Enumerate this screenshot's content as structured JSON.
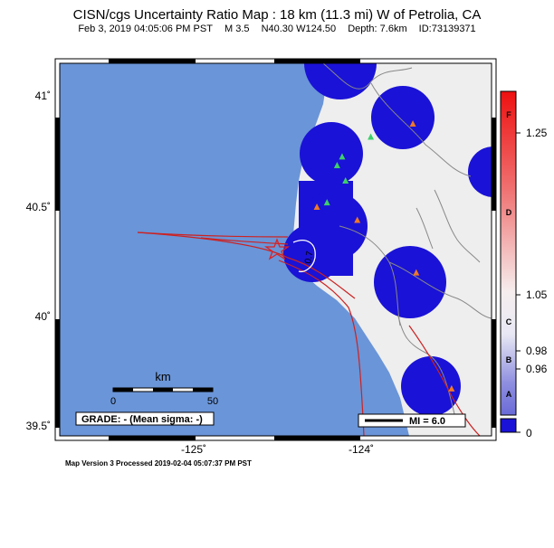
{
  "header": {
    "title": "CISN/cgs Uncertainty Ratio Map : 18 km (11.3 mi) W of Petrolia, CA",
    "date": "Feb  3, 2019 04:05:06 PM PST",
    "magnitude": "M 3.5",
    "location": "N40.30 W124.50",
    "depth": "Depth: 7.6km",
    "event_id": "ID:73139371"
  },
  "axes": {
    "lat_ticks": [
      "41˚",
      "40.5˚",
      "40˚",
      "39.5˚"
    ],
    "lon_ticks": [
      "-125˚",
      "-124˚"
    ]
  },
  "scale_bar": {
    "unit": "km",
    "min": "0",
    "max": "50"
  },
  "grade_box": {
    "text": "GRADE: - (Mean sigma: -)"
  },
  "legend_box": {
    "text": "MI = 6.0"
  },
  "contour_label": "0.7",
  "colorbar": {
    "values": [
      "1.25",
      "1.05",
      "0.98",
      "0.96",
      "0"
    ],
    "letters": [
      "F",
      "D",
      "C",
      "B",
      "A"
    ]
  },
  "footer": {
    "processed": "Map Version 3 Processed 2019-02-04 05:07:37 PM PST"
  },
  "colors": {
    "ocean": "#6a95d8",
    "land": "#eeeeee",
    "station_blob": "#1a12d6",
    "fault": "#cc2222",
    "river": "#888888",
    "epicenter": "#dd2222"
  },
  "stations": [
    {
      "type": "orange",
      "lat": 40.88,
      "lon": -123.72
    },
    {
      "type": "orange",
      "lat": 40.5,
      "lon": -124.29
    },
    {
      "type": "orange",
      "lat": 40.44,
      "lon": -124.05
    },
    {
      "type": "orange",
      "lat": 40.2,
      "lon": -123.7
    },
    {
      "type": "orange",
      "lat": 39.67,
      "lon": -123.49
    },
    {
      "type": "green",
      "lat": 40.82,
      "lon": -123.97
    },
    {
      "type": "green",
      "lat": 40.73,
      "lon": -124.14
    },
    {
      "type": "green",
      "lat": 40.69,
      "lon": -124.17
    },
    {
      "type": "green",
      "lat": 40.62,
      "lon": -124.12
    },
    {
      "type": "green",
      "lat": 40.52,
      "lon": -124.23
    }
  ]
}
